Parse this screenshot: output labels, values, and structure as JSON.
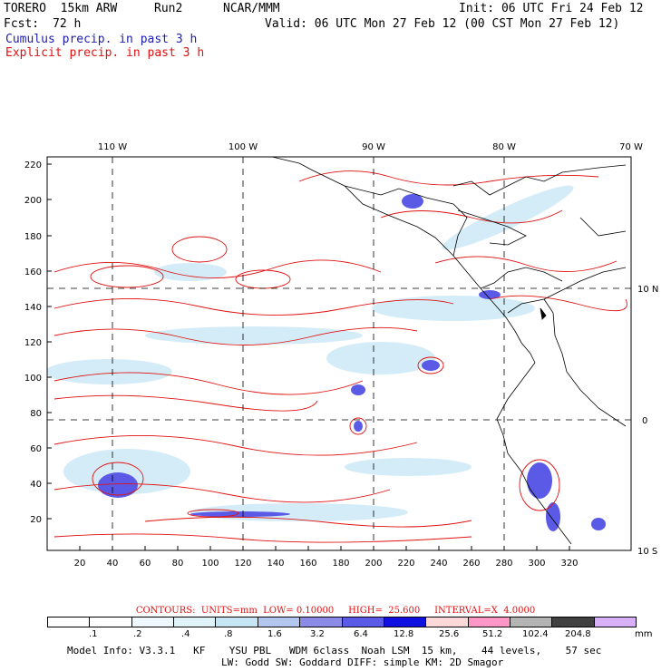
{
  "header": {
    "model": "TORERO  15km ARW",
    "run": "Run2",
    "org": "NCAR/MMM",
    "init": "Init: 06 UTC Fri 24 Feb 12",
    "fcst_label": "Fcst:",
    "fcst_value": "72 h",
    "valid": "Valid: 06 UTC Mon 27 Feb 12 (00 CST Mon 27 Feb 12)",
    "cumulus": "Cumulus precip. in past 3 h",
    "explicit": "Explicit precip. in past 3 h"
  },
  "map": {
    "lon_labels": [
      "110 W",
      "100 W",
      "90 W",
      "80 W",
      "70 W"
    ],
    "lat_labels": [
      "10 N",
      "0",
      "10 S"
    ],
    "y_ticks": [
      "220",
      "200",
      "180",
      "160",
      "140",
      "120",
      "100",
      "80",
      "60",
      "40",
      "20"
    ],
    "x_ticks": [
      "20",
      "40",
      "60",
      "80",
      "100",
      "120",
      "140",
      "160",
      "180",
      "200",
      "220",
      "240",
      "260",
      "280",
      "300",
      "320"
    ]
  },
  "contours": {
    "text": "CONTOURS:  UNITS=mm  LOW= 0.10000     HIGH=  25.600     INTERVAL=X  4.0000"
  },
  "legend": {
    "labels": [
      ".1",
      ".2",
      ".4",
      ".8",
      "1.6",
      "3.2",
      "6.4",
      "12.8",
      "25.6",
      "51.2",
      "102.4",
      "204.8"
    ],
    "unit": "mm",
    "colors": [
      "#ffffff",
      "#ffffff",
      "#f0f8ff",
      "#dff3f8",
      "#c6e6f5",
      "#b3c6ef",
      "#8c8ce8",
      "#5a5ae6",
      "#1010e0",
      "#ffd8d8",
      "#ff96c8",
      "#b4b4b4",
      "#404040",
      "#d8b0f8"
    ]
  },
  "model_info": {
    "line1": "Model Info: V3.3.1   KF    YSU PBL   WDM 6class  Noah LSM  15 km,    44 levels,    57 sec",
    "line2": "LW: Godd SW: Goddard DIFF: simple KM: 2D Smagor"
  }
}
